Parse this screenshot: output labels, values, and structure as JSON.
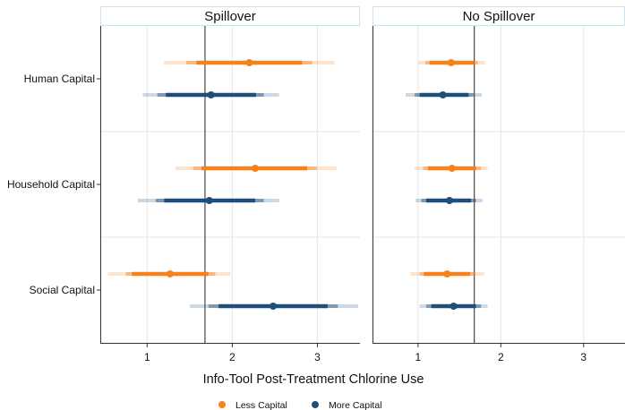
{
  "chart_data": {
    "type": "scatter",
    "subtype": "coefficient-plot",
    "panels": [
      "Spillover",
      "No Spillover"
    ],
    "categories": [
      "Human Capital",
      "Household Capital",
      "Social Capital"
    ],
    "xlabel": "Info-Tool Post-Treatment Chlorine Use",
    "ylabel": "",
    "xlim": [
      0.45,
      3.5
    ],
    "xticks": [
      1,
      2,
      3
    ],
    "grid": true,
    "legend_position": "bottom",
    "reference_line": 1.68,
    "series": [
      {
        "name": "Less Capital",
        "color": "#f5821f",
        "points": [
          {
            "panel": "Spillover",
            "category": "Human Capital",
            "value": 2.2,
            "ci90": [
              1.58,
              2.82
            ],
            "ci95": [
              1.46,
              2.94
            ],
            "ci99": [
              1.2,
              3.2
            ]
          },
          {
            "panel": "Spillover",
            "category": "Household Capital",
            "value": 2.27,
            "ci90": [
              1.64,
              2.88
            ],
            "ci95": [
              1.54,
              2.99
            ],
            "ci99": [
              1.33,
              3.23
            ]
          },
          {
            "panel": "Spillover",
            "category": "Social Capital",
            "value": 1.27,
            "ci90": [
              0.82,
              1.72
            ],
            "ci95": [
              0.75,
              1.8
            ],
            "ci99": [
              0.54,
              1.98
            ]
          },
          {
            "panel": "No Spillover",
            "category": "Human Capital",
            "value": 1.4,
            "ci90": [
              1.14,
              1.67
            ],
            "ci95": [
              1.09,
              1.72
            ],
            "ci99": [
              1.0,
              1.81
            ]
          },
          {
            "panel": "No Spillover",
            "category": "Household Capital",
            "value": 1.41,
            "ci90": [
              1.12,
              1.7
            ],
            "ci95": [
              1.06,
              1.76
            ],
            "ci99": [
              0.96,
              1.84
            ]
          },
          {
            "panel": "No Spillover",
            "category": "Social Capital",
            "value": 1.35,
            "ci90": [
              1.07,
              1.63
            ],
            "ci95": [
              1.02,
              1.69
            ],
            "ci99": [
              0.91,
              1.8
            ]
          }
        ]
      },
      {
        "name": "More Capital",
        "color": "#1f4e79",
        "points": [
          {
            "panel": "Spillover",
            "category": "Human Capital",
            "value": 1.75,
            "ci90": [
              1.22,
              2.28
            ],
            "ci95": [
              1.12,
              2.37
            ],
            "ci99": [
              0.95,
              2.55
            ]
          },
          {
            "panel": "Spillover",
            "category": "Household Capital",
            "value": 1.73,
            "ci90": [
              1.2,
              2.27
            ],
            "ci95": [
              1.1,
              2.37
            ],
            "ci99": [
              0.89,
              2.55
            ]
          },
          {
            "panel": "Spillover",
            "category": "Social Capital",
            "value": 2.48,
            "ci90": [
              1.84,
              3.12
            ],
            "ci95": [
              1.72,
              3.24
            ],
            "ci99": [
              1.5,
              3.48
            ]
          },
          {
            "panel": "No Spillover",
            "category": "Human Capital",
            "value": 1.3,
            "ci90": [
              1.02,
              1.61
            ],
            "ci95": [
              0.96,
              1.67
            ],
            "ci99": [
              0.85,
              1.77
            ]
          },
          {
            "panel": "No Spillover",
            "category": "Household Capital",
            "value": 1.38,
            "ci90": [
              1.1,
              1.64
            ],
            "ci95": [
              1.04,
              1.7
            ],
            "ci99": [
              0.97,
              1.78
            ]
          },
          {
            "panel": "No Spillover",
            "category": "Social Capital",
            "value": 1.43,
            "ci90": [
              1.16,
              1.7
            ],
            "ci95": [
              1.1,
              1.76
            ],
            "ci99": [
              1.02,
              1.84
            ]
          }
        ]
      }
    ]
  }
}
